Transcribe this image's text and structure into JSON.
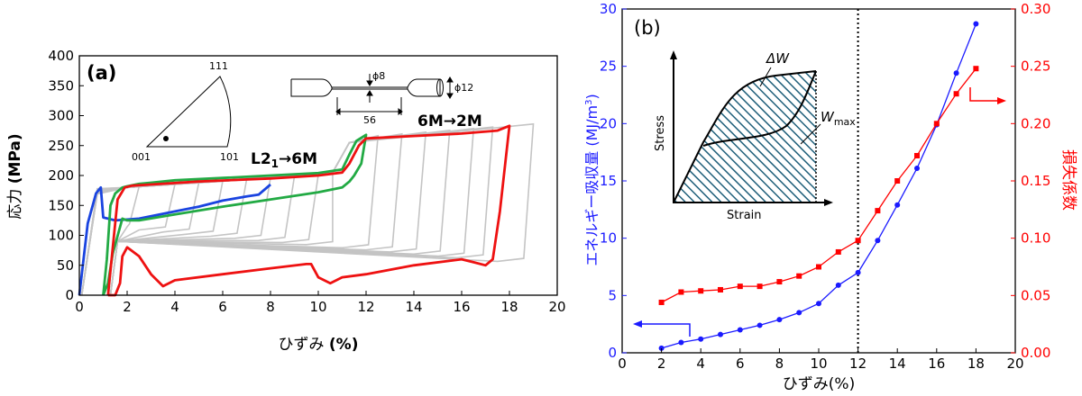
{
  "chart_data": [
    {
      "type": "line",
      "panel_label": "(a)",
      "xlabel_jp": "ひずみ",
      "xlabel_unit": "(%)",
      "ylabel_jp": "応力",
      "ylabel_unit": "(MPa)",
      "xlim": [
        0,
        20
      ],
      "ylim": [
        0,
        400
      ],
      "xticks": [
        0,
        2,
        4,
        6,
        8,
        10,
        12,
        14,
        16,
        18,
        20
      ],
      "yticks": [
        0,
        50,
        100,
        150,
        200,
        250,
        300,
        350,
        400
      ],
      "annotations": {
        "l21_main": "L2",
        "l21_sub": "1",
        "l21_rest": "→6M",
        "m6m2": "6M→2M",
        "pole_001": "001",
        "pole_101": "101",
        "pole_111": "111",
        "dim_phi8": "ϕ8",
        "dim_phi12": "ϕ12",
        "dim_56": "56"
      },
      "series": [
        {
          "color": "#1a44e0",
          "x": [
            0,
            0.35,
            0.7,
            0.9,
            1.0,
            1.5,
            2.5,
            4,
            5,
            6,
            7,
            7.5,
            8
          ],
          "y": [
            0,
            120,
            170,
            180,
            130,
            125,
            128,
            140,
            148,
            158,
            165,
            168,
            185
          ]
        },
        {
          "color": "#22aa44",
          "x": [
            1.0,
            1.15,
            1.3,
            1.5,
            1.8,
            2,
            2.5,
            3,
            4,
            6,
            8,
            10,
            11,
            11.3,
            11.6,
            12,
            11.8,
            11.5,
            11.3,
            11,
            10,
            8,
            6,
            4,
            2.5,
            2,
            1.8,
            1.4,
            1.2,
            1.0
          ],
          "y": [
            0,
            60,
            150,
            170,
            180,
            182,
            186,
            188,
            192,
            196,
            200,
            204,
            210,
            235,
            258,
            268,
            220,
            200,
            190,
            180,
            172,
            160,
            148,
            135,
            125,
            125,
            128,
            70,
            20,
            0
          ]
        },
        {
          "color": "#ee1111",
          "x": [
            1.2,
            1.4,
            1.6,
            1.9,
            2.2,
            3,
            5,
            8,
            10,
            11,
            11.3,
            11.7,
            12,
            14,
            16,
            17.5,
            18,
            17.6,
            17.3,
            17.0,
            16.5,
            16,
            14,
            12,
            11,
            10.5,
            10,
            9.7,
            9.5,
            8,
            6,
            4,
            3.5,
            3,
            2.5,
            2,
            1.8,
            1.7,
            1.5,
            1.3,
            1.2
          ],
          "y": [
            0,
            80,
            160,
            180,
            183,
            185,
            190,
            195,
            200,
            205,
            220,
            250,
            262,
            266,
            270,
            275,
            283,
            140,
            60,
            50,
            55,
            60,
            50,
            35,
            30,
            20,
            30,
            52,
            52,
            45,
            35,
            25,
            15,
            35,
            65,
            80,
            65,
            20,
            0,
            0,
            0
          ]
        }
      ]
    },
    {
      "type": "line",
      "panel_label": "(b)",
      "xlabel_jp": "ひずみ",
      "xlabel_unit": "(%)",
      "ylabel_left": "エネルギー吸収量 (MJ/m",
      "ylabel_left_sup": "3",
      "ylabel_left_close": ")",
      "ylabel_right": "損失係数",
      "xlim": [
        0,
        20
      ],
      "ylim_left": [
        0,
        30
      ],
      "ylim_right": [
        0,
        0.3
      ],
      "xticks": [
        0,
        2,
        4,
        6,
        8,
        10,
        12,
        14,
        16,
        18,
        20
      ],
      "yticks_left": [
        0,
        5,
        10,
        15,
        20,
        25,
        30
      ],
      "yticks_right": [
        "0.00",
        "0.05",
        "0.10",
        "0.15",
        "0.20",
        "0.25",
        "0.30"
      ],
      "vline_x": 12,
      "inset": {
        "ylabel": "Stress",
        "xlabel": "Strain",
        "dW": "ΔW",
        "Wmax": "W",
        "Wmax_sub": "max"
      },
      "series": [
        {
          "axis": "left",
          "color": "#1a1aff",
          "marker": "circle",
          "x": [
            2,
            3,
            4,
            5,
            6,
            7,
            8,
            9,
            10,
            11,
            12,
            13,
            14,
            15,
            16,
            17,
            18
          ],
          "y": [
            0.4,
            0.9,
            1.2,
            1.6,
            2.0,
            2.4,
            2.9,
            3.5,
            4.3,
            5.9,
            7.0,
            9.8,
            12.9,
            16.1,
            19.9,
            24.4,
            28.7
          ]
        },
        {
          "axis": "right",
          "color": "#ff0000",
          "marker": "square",
          "x": [
            2,
            3,
            4,
            5,
            6,
            7,
            8,
            9,
            10,
            11,
            12,
            13,
            14,
            15,
            16,
            17,
            18
          ],
          "y": [
            0.044,
            0.053,
            0.054,
            0.055,
            0.058,
            0.058,
            0.062,
            0.067,
            0.075,
            0.088,
            0.098,
            0.124,
            0.15,
            0.172,
            0.2,
            0.226,
            0.248
          ]
        }
      ]
    }
  ]
}
